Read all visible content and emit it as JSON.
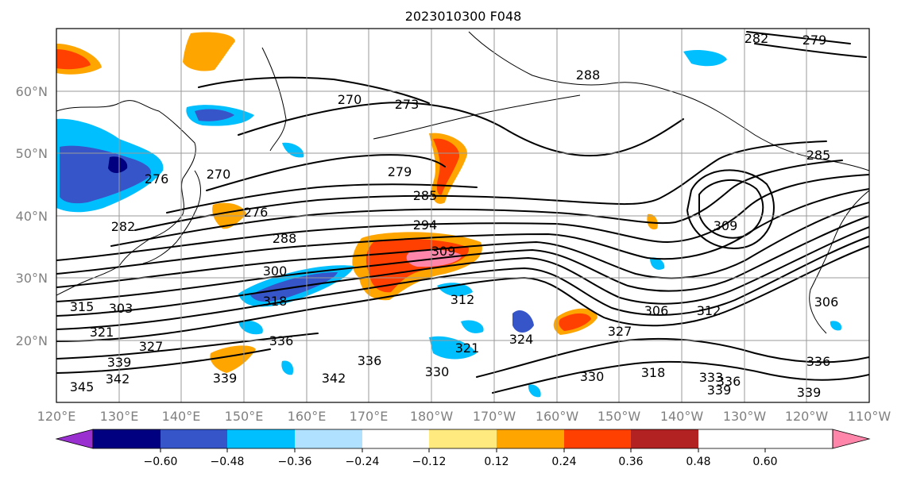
{
  "title": "2023010300 F048",
  "map": {
    "lon_ticks": [
      "120°E",
      "130°E",
      "140°E",
      "150°E",
      "160°E",
      "170°E",
      "180°W",
      "170°W",
      "160°W",
      "150°W",
      "140°W",
      "130°W",
      "120°W",
      "110°W"
    ],
    "lat_ticks": [
      "60°N",
      "50°N",
      "40°N",
      "30°N",
      "20°N"
    ],
    "contour_labels": [
      "282",
      "279",
      "270",
      "273",
      "288",
      "285",
      "279",
      "276",
      "270",
      "276",
      "282",
      "285",
      "294",
      "288",
      "309",
      "300",
      "309",
      "303",
      "315",
      "318",
      "312",
      "306",
      "312",
      "306",
      "321",
      "327",
      "327",
      "324",
      "321",
      "336",
      "339",
      "336",
      "330",
      "342",
      "342",
      "339",
      "345",
      "330",
      "318",
      "333",
      "336",
      "339",
      "336",
      "339"
    ]
  },
  "colorbar": {
    "colors": [
      "#9b30d0",
      "#000080",
      "#3555c8",
      "#00bfff",
      "#b0e2ff",
      "#ffffff",
      "#ffea80",
      "#ffa500",
      "#ff4000",
      "#b22222",
      "#ff85aa"
    ],
    "tick_labels": [
      "−0.60",
      "−0.48",
      "−0.36",
      "−0.24",
      "−0.12",
      "0.12",
      "0.24",
      "0.36",
      "0.48",
      "0.60"
    ]
  }
}
